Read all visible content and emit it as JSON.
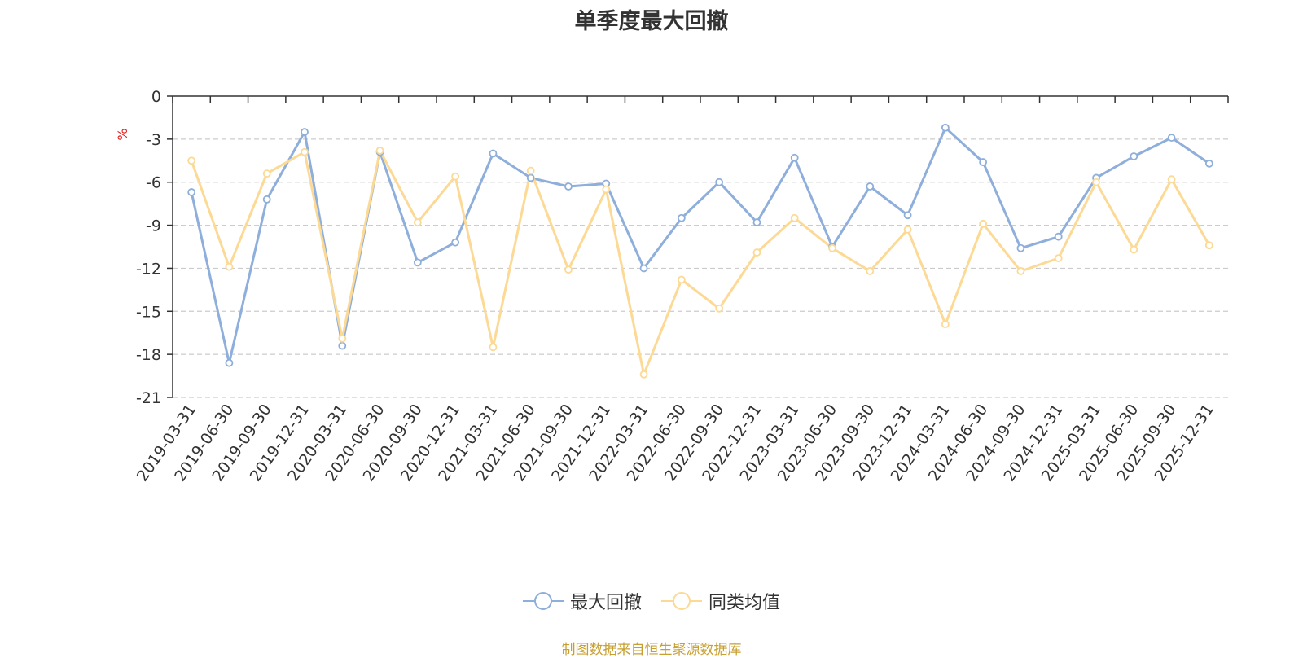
{
  "source_text": "制图数据来自恒生聚源数据库",
  "chart_data": {
    "type": "line",
    "title": "单季度最大回撤",
    "ylabel": "%",
    "ylim": [
      -21,
      0
    ],
    "yticks": [
      0,
      -3,
      -6,
      -9,
      -12,
      -15,
      -18,
      -21
    ],
    "grid": true,
    "legend_position": "bottom",
    "categories": [
      "2019-03-31",
      "2019-06-30",
      "2019-09-30",
      "2019-12-31",
      "2020-03-31",
      "2020-06-30",
      "2020-09-30",
      "2020-12-31",
      "2021-03-31",
      "2021-06-30",
      "2021-09-30",
      "2021-12-31",
      "2022-03-31",
      "2022-06-30",
      "2022-09-30",
      "2022-12-31",
      "2023-03-31",
      "2023-06-30",
      "2023-09-30",
      "2023-12-31",
      "2024-03-31",
      "2024-06-30",
      "2024-09-30",
      "2024-12-31",
      "2025-03-31",
      "2025-06-30",
      "2025-09-30",
      "2025-12-31"
    ],
    "series": [
      {
        "name": "最大回撤",
        "color": "#8eaedb",
        "values": [
          -6.7,
          -18.6,
          -7.2,
          -2.5,
          -17.4,
          -3.9,
          -11.6,
          -10.2,
          -4.0,
          -5.7,
          -6.3,
          -6.1,
          -12.0,
          -8.5,
          -6.0,
          -8.8,
          -4.3,
          -10.5,
          -6.3,
          -8.3,
          -2.2,
          -4.6,
          -10.6,
          -9.8,
          -5.7,
          -4.2,
          -2.9,
          -4.7
        ]
      },
      {
        "name": "同类均值",
        "color": "#fcd994",
        "values": [
          -4.5,
          -11.9,
          -5.4,
          -3.9,
          -16.9,
          -3.8,
          -8.8,
          -5.6,
          -17.5,
          -5.2,
          -12.1,
          -6.5,
          -19.4,
          -12.8,
          -14.8,
          -10.9,
          -8.5,
          -10.6,
          -12.2,
          -9.3,
          -15.9,
          -8.9,
          -12.2,
          -11.3,
          -6.0,
          -10.7,
          -5.8,
          -10.4
        ]
      }
    ]
  }
}
